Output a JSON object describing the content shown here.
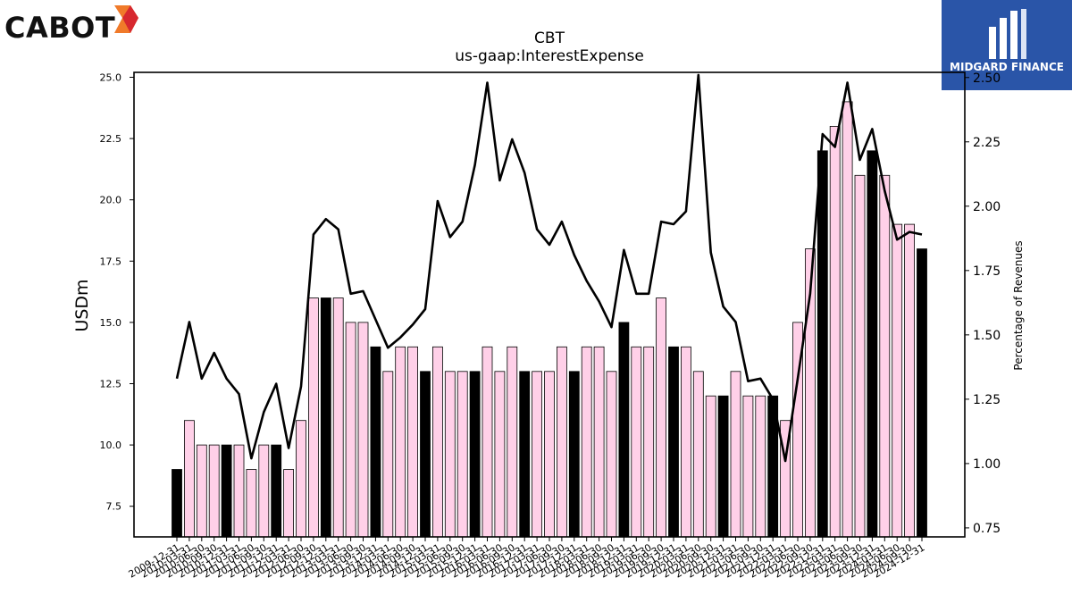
{
  "brand": {
    "company_logo": "CABOT",
    "partner_logo": "MIDGARD FINANCE"
  },
  "chart_data": {
    "type": "bar",
    "title": "CBT",
    "subtitle": "us-gaap:InterestExpense",
    "ylabel": "USDm",
    "y2label": "Percentage of Revenues",
    "ylim": [
      6.25,
      25.2
    ],
    "y2lim": [
      0.715,
      2.52
    ],
    "yticks": [
      "7.5",
      "10.0",
      "12.5",
      "15.0",
      "17.5",
      "20.0",
      "22.5",
      "25.0"
    ],
    "y2ticks": [
      "0.75",
      "1.00",
      "1.25",
      "1.50",
      "1.75",
      "2.00",
      "2.25",
      "2.50"
    ],
    "categories": [
      "2009-12-31",
      "2010-03-31",
      "2010-06-30",
      "2010-09-30",
      "2010-12-31",
      "2011-03-31",
      "2011-06-30",
      "2011-09-30",
      "2011-12-31",
      "2012-03-31",
      "2012-06-30",
      "2012-09-30",
      "2012-12-31",
      "2013-03-31",
      "2013-06-30",
      "2013-09-30",
      "2013-12-31",
      "2014-03-31",
      "2014-06-30",
      "2014-09-30",
      "2014-12-31",
      "2015-03-31",
      "2015-06-30",
      "2015-09-30",
      "2015-12-31",
      "2016-03-31",
      "2016-06-30",
      "2016-09-30",
      "2016-12-31",
      "2017-03-31",
      "2017-06-30",
      "2017-09-30",
      "2017-12-31",
      "2018-03-31",
      "2018-06-30",
      "2018-09-30",
      "2018-12-31",
      "2019-03-31",
      "2019-06-30",
      "2019-09-30",
      "2019-12-31",
      "2020-03-31",
      "2020-06-30",
      "2020-09-30",
      "2020-12-31",
      "2021-03-31",
      "2021-06-30",
      "2021-09-30",
      "2021-12-31",
      "2022-03-31",
      "2022-06-30",
      "2022-09-30",
      "2022-12-31",
      "2023-03-31",
      "2023-06-30",
      "2023-09-30",
      "2023-12-31",
      "2024-03-31",
      "2024-06-30",
      "2024-09-30",
      "2024-12-31"
    ],
    "series": [
      {
        "kind": "bar",
        "values": [
          9,
          11,
          10,
          10,
          10,
          10,
          9,
          10,
          10,
          9,
          11,
          16,
          16,
          16,
          15,
          15,
          14,
          13,
          14,
          14,
          13,
          14,
          13,
          13,
          13,
          14,
          13,
          14,
          13,
          13,
          13,
          14,
          13,
          14,
          14,
          13,
          15,
          14,
          14,
          16,
          14,
          14,
          13,
          12,
          12,
          13,
          12,
          12,
          12,
          11,
          15,
          18,
          22,
          23,
          24,
          21,
          22,
          21,
          19,
          19,
          18
        ],
        "colors": {
          "fiscal_year_end": "#000000",
          "quarter": "#ffd0e8",
          "edge": "#000000"
        }
      },
      {
        "kind": "line",
        "axis": "right",
        "color": "#000000",
        "values": [
          1.33,
          1.55,
          1.33,
          1.43,
          1.33,
          1.27,
          1.02,
          1.2,
          1.31,
          1.06,
          1.3,
          1.89,
          1.95,
          1.91,
          1.66,
          1.67,
          1.56,
          1.45,
          1.49,
          1.54,
          1.6,
          2.02,
          1.88,
          1.94,
          2.16,
          2.48,
          2.1,
          2.26,
          2.13,
          1.91,
          1.85,
          1.94,
          1.81,
          1.71,
          1.63,
          1.53,
          1.83,
          1.66,
          1.66,
          1.94,
          1.93,
          1.98,
          2.51,
          1.82,
          1.61,
          1.55,
          1.32,
          1.33,
          1.25,
          1.01,
          1.33,
          1.66,
          2.28,
          2.23,
          2.48,
          2.18,
          2.3,
          2.06,
          1.87,
          1.9,
          1.89
        ]
      }
    ]
  }
}
